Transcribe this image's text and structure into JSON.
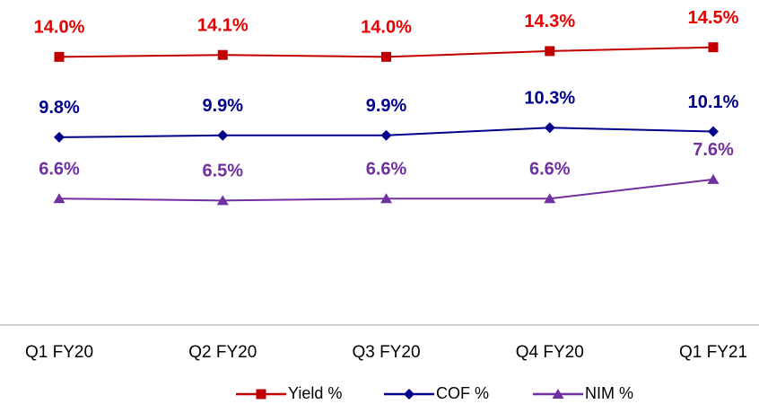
{
  "chart_data": {
    "type": "line",
    "categories": [
      "Q1 FY20",
      "Q2 FY20",
      "Q3 FY20",
      "Q4 FY20",
      "Q1 FY21"
    ],
    "series": [
      {
        "name": "Yield %",
        "color": "#c00000",
        "label_color": "#e60000",
        "marker": "square",
        "values": [
          14.0,
          14.1,
          14.0,
          14.3,
          14.5
        ],
        "value_labels": [
          "14.0%",
          "14.1%",
          "14.0%",
          "14.3%",
          "14.5%"
        ]
      },
      {
        "name": "COF %",
        "color": "#00008b",
        "label_color": "#00008b",
        "marker": "diamond",
        "values": [
          9.8,
          9.9,
          9.9,
          10.3,
          10.1
        ],
        "value_labels": [
          "9.8%",
          "9.9%",
          "9.9%",
          "10.3%",
          "10.1%"
        ]
      },
      {
        "name": "NIM %",
        "color": "#7030a0",
        "label_color": "#7030a0",
        "marker": "triangle",
        "values": [
          6.6,
          6.5,
          6.6,
          6.6,
          7.6
        ],
        "value_labels": [
          "6.6%",
          "6.5%",
          "6.6%",
          "6.6%",
          "7.6%"
        ]
      }
    ],
    "ylim": [
      0,
      16.5
    ],
    "legend": "bottom"
  }
}
